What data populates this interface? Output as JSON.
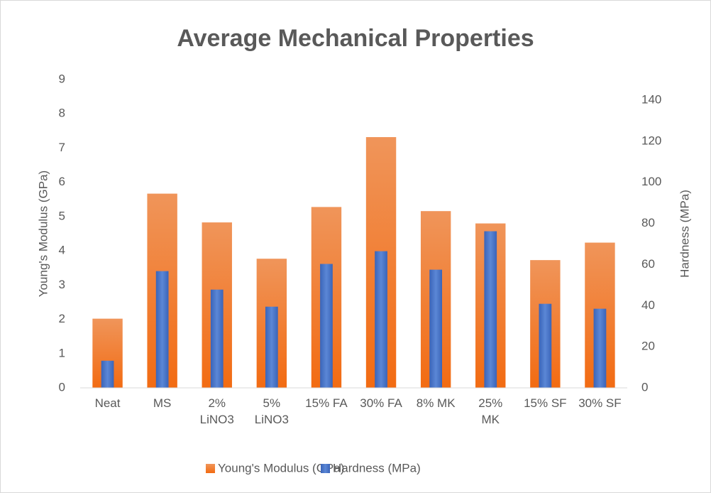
{
  "chart_data": {
    "type": "bar",
    "title": "Average Mechanical Properties",
    "categories": [
      "Neat",
      "MS",
      "2%\nLiNO3",
      "5%\nLiNO3",
      "15% FA",
      "30% FA",
      "8% MK",
      "25%\nMK",
      "15% SF",
      "30% SF"
    ],
    "series": [
      {
        "name": "Young's Modulus (GPa)",
        "color": "#ed7d31",
        "values": [
          2.02,
          5.67,
          4.83,
          3.77,
          5.28,
          7.32,
          5.16,
          4.8,
          3.73,
          4.24
        ]
      },
      {
        "name": "Hardness (MPa)",
        "color": "#4472c4",
        "axis": "y2",
        "values": [
          13.2,
          56.8,
          47.8,
          39.5,
          60.3,
          66.5,
          57.5,
          76.2,
          40.9,
          38.5
        ]
      }
    ],
    "ylabel": "Young's Modulus (GPa)",
    "y2label": "Hardness (MPa)",
    "ylim": [
      0,
      9
    ],
    "yticks": [
      0,
      1,
      2,
      3,
      4,
      5,
      6,
      7,
      8,
      9
    ],
    "y2lim": [
      0,
      150
    ],
    "y2ticks": [
      0,
      20,
      40,
      60,
      80,
      100,
      120,
      140
    ],
    "grid": false,
    "legend": "bottom"
  }
}
